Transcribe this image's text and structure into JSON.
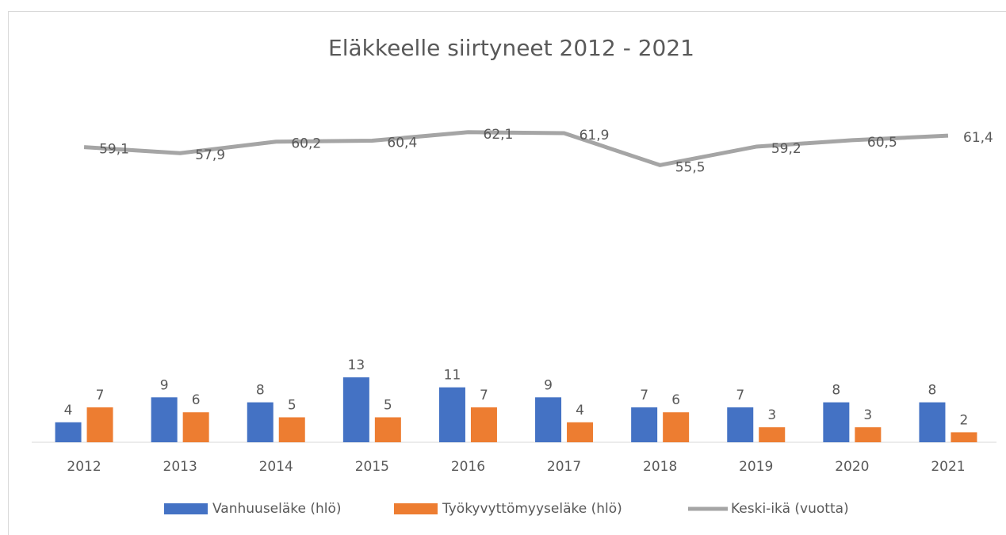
{
  "chart_data": {
    "type": "bar",
    "title": "Eläkkeelle siirtyneet 2012 - 2021",
    "categories": [
      "2012",
      "2013",
      "2014",
      "2015",
      "2016",
      "2017",
      "2018",
      "2019",
      "2020",
      "2021"
    ],
    "ylim": [
      0,
      70
    ],
    "legend": "bottom",
    "series": [
      {
        "name": "Vanhuuseläke (hlö)",
        "type": "bar",
        "color": "#4472c4",
        "values": [
          4,
          9,
          8,
          13,
          11,
          9,
          7,
          7,
          8,
          8
        ]
      },
      {
        "name": "Työkyvyttömyyseläke (hlö)",
        "type": "bar",
        "color": "#ed7d31",
        "values": [
          7,
          6,
          5,
          5,
          7,
          4,
          6,
          3,
          3,
          2
        ]
      },
      {
        "name": "Keski-ikä (vuotta)",
        "type": "line",
        "color": "#a5a5a5",
        "values": [
          59.1,
          57.9,
          60.2,
          60.4,
          62.1,
          61.9,
          55.5,
          59.2,
          60.5,
          61.4
        ],
        "value_labels": [
          "59,1",
          "57,9",
          "60,2",
          "60,4",
          "62,1",
          "61,9",
          "55,5",
          "59,2",
          "60,5",
          "61,4"
        ]
      }
    ]
  }
}
